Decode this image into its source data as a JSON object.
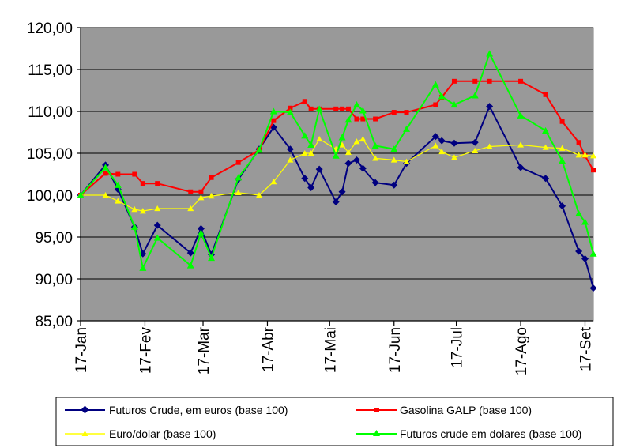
{
  "chart_data": {
    "type": "line",
    "title": "",
    "xlabel": "",
    "ylabel": "",
    "ylim": [
      85,
      120
    ],
    "y_ticks": [
      "85,00",
      "90,00",
      "95,00",
      "100,00",
      "105,00",
      "110,00",
      "115,00",
      "120,00"
    ],
    "y_tick_values": [
      85,
      90,
      95,
      100,
      105,
      110,
      115,
      120
    ],
    "x_ticks": [
      "17-Jan",
      "17-Fev",
      "17-Mar",
      "17-Abr",
      "17-Mai",
      "17-Jun",
      "17-Jul",
      "17-Ago",
      "17-Set"
    ],
    "x_tick_days": [
      0,
      31,
      59,
      90,
      120,
      151,
      181,
      212,
      243
    ],
    "xlim_days": [
      0,
      247
    ],
    "grid": "horizontal",
    "plot_background": "#999999",
    "legend_position": "bottom",
    "series": [
      {
        "name": "Futuros Crude, em euros (base 100)",
        "color": "#000080",
        "marker": "diamond",
        "points": [
          [
            0,
            100.0
          ],
          [
            12,
            103.6
          ],
          [
            18,
            100.7
          ],
          [
            26,
            96.2
          ],
          [
            30,
            93.0
          ],
          [
            37,
            96.4
          ],
          [
            53,
            93.1
          ],
          [
            58,
            96.0
          ],
          [
            63,
            92.9
          ],
          [
            76,
            101.9
          ],
          [
            86,
            105.5
          ],
          [
            93,
            108.1
          ],
          [
            101,
            105.5
          ],
          [
            108,
            102.0
          ],
          [
            111,
            100.9
          ],
          [
            115,
            103.1
          ],
          [
            123,
            99.2
          ],
          [
            126,
            100.4
          ],
          [
            129,
            103.8
          ],
          [
            133,
            104.2
          ],
          [
            136,
            103.2
          ],
          [
            142,
            101.5
          ],
          [
            151,
            101.2
          ],
          [
            157,
            103.8
          ],
          [
            171,
            107.0
          ],
          [
            174,
            106.5
          ],
          [
            180,
            106.2
          ],
          [
            190,
            106.3
          ],
          [
            197,
            110.6
          ],
          [
            212,
            103.3
          ],
          [
            224,
            102.0
          ],
          [
            232,
            98.7
          ],
          [
            240,
            93.3
          ],
          [
            243,
            92.4
          ],
          [
            247,
            88.9
          ]
        ]
      },
      {
        "name": "Gasolina GALP (base 100)",
        "color": "#FF0000",
        "marker": "square",
        "points": [
          [
            0,
            100.0
          ],
          [
            12,
            102.6
          ],
          [
            18,
            102.5
          ],
          [
            26,
            102.5
          ],
          [
            30,
            101.4
          ],
          [
            37,
            101.4
          ],
          [
            53,
            100.4
          ],
          [
            58,
            100.4
          ],
          [
            63,
            102.1
          ],
          [
            76,
            103.9
          ],
          [
            86,
            105.4
          ],
          [
            93,
            108.9
          ],
          [
            101,
            110.4
          ],
          [
            108,
            111.2
          ],
          [
            111,
            110.3
          ],
          [
            115,
            110.3
          ],
          [
            123,
            110.3
          ],
          [
            126,
            110.3
          ],
          [
            129,
            110.3
          ],
          [
            133,
            109.1
          ],
          [
            136,
            109.1
          ],
          [
            142,
            109.1
          ],
          [
            151,
            109.9
          ],
          [
            157,
            109.9
          ],
          [
            171,
            110.8
          ],
          [
            174,
            111.7
          ],
          [
            180,
            113.6
          ],
          [
            190,
            113.6
          ],
          [
            197,
            113.6
          ],
          [
            212,
            113.6
          ],
          [
            224,
            112.0
          ],
          [
            232,
            108.8
          ],
          [
            240,
            106.3
          ],
          [
            243,
            104.7
          ],
          [
            247,
            103.0
          ]
        ]
      },
      {
        "name": "Euro/dolar (base 100)",
        "color": "#FFFF00",
        "marker": "triangle",
        "points": [
          [
            0,
            100.0
          ],
          [
            12,
            100.0
          ],
          [
            18,
            99.3
          ],
          [
            26,
            98.3
          ],
          [
            30,
            98.1
          ],
          [
            37,
            98.4
          ],
          [
            53,
            98.4
          ],
          [
            58,
            99.7
          ],
          [
            63,
            99.9
          ],
          [
            76,
            100.3
          ],
          [
            86,
            100.0
          ],
          [
            93,
            101.6
          ],
          [
            101,
            104.2
          ],
          [
            108,
            105.0
          ],
          [
            111,
            105.0
          ],
          [
            115,
            106.7
          ],
          [
            123,
            105.5
          ],
          [
            126,
            106.0
          ],
          [
            129,
            105.1
          ],
          [
            133,
            106.4
          ],
          [
            136,
            106.7
          ],
          [
            142,
            104.4
          ],
          [
            151,
            104.2
          ],
          [
            157,
            104.0
          ],
          [
            171,
            105.9
          ],
          [
            174,
            105.2
          ],
          [
            180,
            104.5
          ],
          [
            190,
            105.3
          ],
          [
            197,
            105.8
          ],
          [
            212,
            106.0
          ],
          [
            224,
            105.7
          ],
          [
            232,
            105.6
          ],
          [
            240,
            104.8
          ],
          [
            243,
            104.8
          ],
          [
            247,
            104.7
          ]
        ]
      },
      {
        "name": "Futuros crude em dolares (base 100)",
        "color": "#00FF00",
        "marker": "triangle",
        "points": [
          [
            0,
            100.0
          ],
          [
            12,
            103.3
          ],
          [
            18,
            101.2
          ],
          [
            26,
            96.2
          ],
          [
            30,
            91.3
          ],
          [
            37,
            94.9
          ],
          [
            53,
            91.6
          ],
          [
            58,
            95.5
          ],
          [
            63,
            92.5
          ],
          [
            76,
            102.1
          ],
          [
            86,
            105.4
          ],
          [
            93,
            110.0
          ],
          [
            101,
            109.9
          ],
          [
            108,
            107.1
          ],
          [
            111,
            106.0
          ],
          [
            115,
            110.3
          ],
          [
            123,
            104.7
          ],
          [
            126,
            106.9
          ],
          [
            129,
            109.0
          ],
          [
            133,
            110.8
          ],
          [
            136,
            110.1
          ],
          [
            142,
            105.9
          ],
          [
            151,
            105.5
          ],
          [
            157,
            107.9
          ],
          [
            171,
            113.2
          ],
          [
            174,
            111.8
          ],
          [
            180,
            110.8
          ],
          [
            190,
            111.9
          ],
          [
            197,
            116.9
          ],
          [
            212,
            109.5
          ],
          [
            224,
            107.7
          ],
          [
            232,
            104.1
          ],
          [
            240,
            97.8
          ],
          [
            243,
            96.8
          ],
          [
            247,
            93.0
          ]
        ]
      }
    ]
  }
}
